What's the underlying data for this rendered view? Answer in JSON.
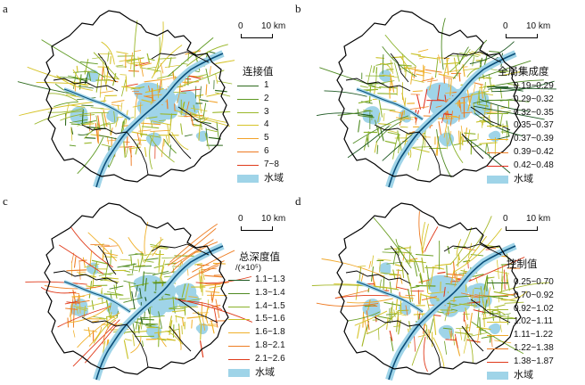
{
  "scale_bar": {
    "zero": "0",
    "distance": "10 km"
  },
  "colors": {
    "water": "#9fd4e8",
    "boundary": "#000000",
    "river": "#0b4f7a"
  },
  "panels": [
    {
      "label": "a",
      "legend_title": "连接值",
      "legend_subtitle": "",
      "legend": [
        {
          "label": "1",
          "color": "#2f6b1e"
        },
        {
          "label": "2",
          "color": "#5e9a22"
        },
        {
          "label": "3",
          "color": "#9ab72a"
        },
        {
          "label": "4",
          "color": "#d6c328"
        },
        {
          "label": "5",
          "color": "#f2a22a"
        },
        {
          "label": "6",
          "color": "#ee7a22"
        },
        {
          "label": "7~8",
          "color": "#e03a1a"
        }
      ],
      "water_label": "水域"
    },
    {
      "label": "b",
      "legend_title": "全局集成度",
      "legend_subtitle": "",
      "legend": [
        {
          "label": "0.19~0.29",
          "color": "#1f5a24"
        },
        {
          "label": "0.29~0.32",
          "color": "#4f8a22"
        },
        {
          "label": "0.32~0.35",
          "color": "#8ab22a"
        },
        {
          "label": "0.35~0.37",
          "color": "#c9c22a"
        },
        {
          "label": "0.37~0.39",
          "color": "#f0b02a"
        },
        {
          "label": "0.39~0.42",
          "color": "#ee7e24"
        },
        {
          "label": "0.42~0.48",
          "color": "#e02a1a"
        }
      ],
      "water_label": "水域"
    },
    {
      "label": "c",
      "legend_title": "总深度值",
      "legend_subtitle": "/(×10⁵)",
      "legend": [
        {
          "label": "1.1~1.3",
          "color": "#1f5a24"
        },
        {
          "label": "1.3~1.4",
          "color": "#4f8a22"
        },
        {
          "label": "1.4~1.5",
          "color": "#8ab22a"
        },
        {
          "label": "1.5~1.6",
          "color": "#c9c22a"
        },
        {
          "label": "1.6~1.8",
          "color": "#f0b02a"
        },
        {
          "label": "1.8~2.1",
          "color": "#ee7e24"
        },
        {
          "label": "2.1~2.6",
          "color": "#e03a1a"
        }
      ],
      "water_label": "水域"
    },
    {
      "label": "d",
      "legend_title": "控制值",
      "legend_subtitle": "",
      "legend": [
        {
          "label": "0.25~0.70",
          "color": "#2f6b1e"
        },
        {
          "label": "0.70~0.92",
          "color": "#6a9e22"
        },
        {
          "label": "0.92~1.02",
          "color": "#a6b82a"
        },
        {
          "label": "1.02~1.11",
          "color": "#d6c328"
        },
        {
          "label": "1.11~1.22",
          "color": "#f0a82a"
        },
        {
          "label": "1.22~1.38",
          "color": "#ee7a22"
        },
        {
          "label": "1.38~1.87",
          "color": "#e03a1a"
        }
      ],
      "water_label": "水域"
    }
  ]
}
